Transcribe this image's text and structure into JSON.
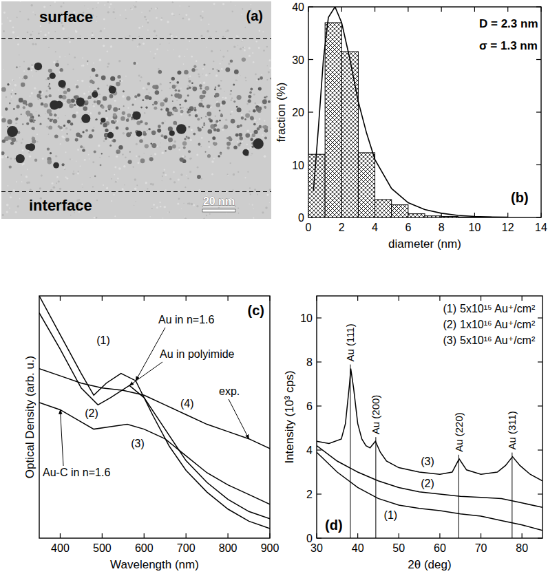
{
  "chart_data": [
    {
      "type": "image",
      "panel_label": "(a)",
      "texts": {
        "top": "surface",
        "bottom": "interface"
      },
      "scale_bar": "20 nm"
    },
    {
      "type": "histogram",
      "panel_label": "(b)",
      "xlabel": "diameter (nm)",
      "ylabel": "fraction (%)",
      "bins": [
        0,
        1,
        2,
        3,
        4,
        5,
        6,
        7,
        8,
        9,
        10,
        11
      ],
      "values": [
        12,
        37,
        31.5,
        12.3,
        3.4,
        2.4,
        0.7,
        0.3,
        0.2,
        0.1,
        0.1
      ],
      "color": "#000000",
      "fit": {
        "x": [
          0.3,
          0.6,
          0.9,
          1.2,
          1.6,
          2.0,
          2.5,
          3.0,
          3.5,
          4.0,
          5.0,
          6.0,
          7.0,
          8.0,
          9.0,
          10.0,
          11.0,
          12.0
        ],
        "values": [
          5,
          17,
          30,
          38,
          40,
          37,
          30,
          22,
          16,
          11,
          5.5,
          2.8,
          1.5,
          0.8,
          0.4,
          0.2,
          0.1,
          0.05
        ]
      },
      "annotations": [
        "D = 2.3 nm",
        "σ = 1.3 nm"
      ],
      "xlim": [
        0,
        14
      ],
      "ylim": [
        0,
        40
      ],
      "xticks": [
        0,
        2,
        4,
        6,
        8,
        10,
        12,
        14
      ],
      "yticks": [
        0,
        10,
        20,
        30,
        40
      ]
    },
    {
      "type": "line",
      "panel_label": "(c)",
      "xlabel": "Wavelength (nm)",
      "ylabel": "Optical Density (arb. u.)",
      "tick_labels": "x",
      "xlim": [
        350,
        900
      ],
      "ylim": [
        0,
        10
      ],
      "xticks": [
        400,
        500,
        600,
        700,
        800,
        900
      ],
      "series": [
        {
          "name": "(1)",
          "annotation": "Au in n=1.6",
          "color": "#000000",
          "x": [
            350,
            400,
            450,
            480,
            510,
            545,
            580,
            620,
            660,
            700,
            750,
            800,
            850,
            900
          ],
          "values": [
            10.0,
            8.4,
            6.8,
            5.9,
            6.4,
            6.8,
            6.5,
            5.1,
            3.8,
            2.8,
            1.9,
            1.2,
            0.7,
            0.4
          ]
        },
        {
          "name": "(2)",
          "annotation": "Au in polyimide",
          "color": "#000000",
          "x": [
            350,
            400,
            450,
            490,
            520,
            565,
            600,
            650,
            700,
            750,
            800,
            850,
            900
          ],
          "values": [
            9.3,
            7.8,
            6.2,
            5.5,
            5.8,
            6.3,
            5.8,
            4.5,
            3.2,
            2.3,
            1.6,
            1.1,
            0.8
          ]
        },
        {
          "name": "(3)",
          "annotation": "Au-C in n=1.6",
          "color": "#000000",
          "x": [
            350,
            400,
            450,
            480,
            520,
            560,
            600,
            650,
            700,
            750,
            800,
            850,
            900
          ],
          "values": [
            5.6,
            5.3,
            4.8,
            4.5,
            4.6,
            4.7,
            4.5,
            4.1,
            3.4,
            2.7,
            2.2,
            1.8,
            1.4
          ]
        },
        {
          "name": "(4)",
          "annotation": "exp.",
          "color": "#000000",
          "x": [
            350,
            400,
            450,
            500,
            550,
            600,
            650,
            700,
            750,
            800,
            850,
            900
          ],
          "values": [
            7.0,
            6.7,
            6.4,
            6.2,
            6.1,
            5.9,
            5.5,
            5.1,
            4.7,
            4.4,
            4.1,
            3.7
          ]
        }
      ]
    },
    {
      "type": "line",
      "panel_label": "(d)",
      "xlabel": "2θ (deg)",
      "ylabel": "Intensity (10³ cps)",
      "legend": "top-right",
      "xlim": [
        30,
        85
      ],
      "ylim": [
        0,
        11
      ],
      "xticks": [
        30,
        40,
        50,
        60,
        70,
        80
      ],
      "yticks": [
        0,
        2,
        4,
        6,
        8,
        10
      ],
      "series": [
        {
          "name": "(1)",
          "label": "5x10¹⁵ Au⁺/cm²",
          "color": "#000000",
          "x": [
            30,
            35,
            40,
            45,
            50,
            55,
            60,
            65,
            70,
            75,
            80,
            85
          ],
          "values": [
            3.9,
            3.0,
            2.3,
            1.8,
            1.5,
            1.35,
            1.25,
            1.1,
            1.0,
            0.8,
            0.6,
            0.35
          ]
        },
        {
          "name": "(2)",
          "label": "1x10¹⁶ Au⁺/cm²",
          "color": "#000000",
          "x": [
            30,
            35,
            40,
            45,
            50,
            55,
            60,
            65,
            70,
            75,
            80,
            85
          ],
          "values": [
            4.2,
            3.5,
            3.0,
            2.6,
            2.3,
            2.1,
            2.0,
            1.9,
            1.85,
            1.8,
            1.6,
            1.4
          ]
        },
        {
          "name": "(3)",
          "label": "5x10¹⁶ Au⁺/cm²",
          "color": "#000000",
          "x": [
            30,
            33,
            36,
            37,
            38,
            38.3,
            39,
            40,
            41,
            42,
            43,
            44.3,
            45.5,
            47,
            50,
            55,
            60,
            63,
            64.7,
            66.5,
            70,
            74,
            76,
            77.7,
            79.5,
            82,
            85
          ],
          "values": [
            4.4,
            4.3,
            4.5,
            5.2,
            7.0,
            7.7,
            6.8,
            5.2,
            4.5,
            4.2,
            4.1,
            4.4,
            3.9,
            3.5,
            3.2,
            3.0,
            2.9,
            3.0,
            3.6,
            3.1,
            2.9,
            3.0,
            3.3,
            3.7,
            3.3,
            2.9,
            2.6
          ]
        }
      ],
      "reference_lines": [
        {
          "x": 38.2,
          "label": "Au (111)"
        },
        {
          "x": 44.4,
          "label": "Au (200)"
        },
        {
          "x": 64.6,
          "label": "Au (220)"
        },
        {
          "x": 77.6,
          "label": "Au (311)"
        }
      ]
    }
  ]
}
